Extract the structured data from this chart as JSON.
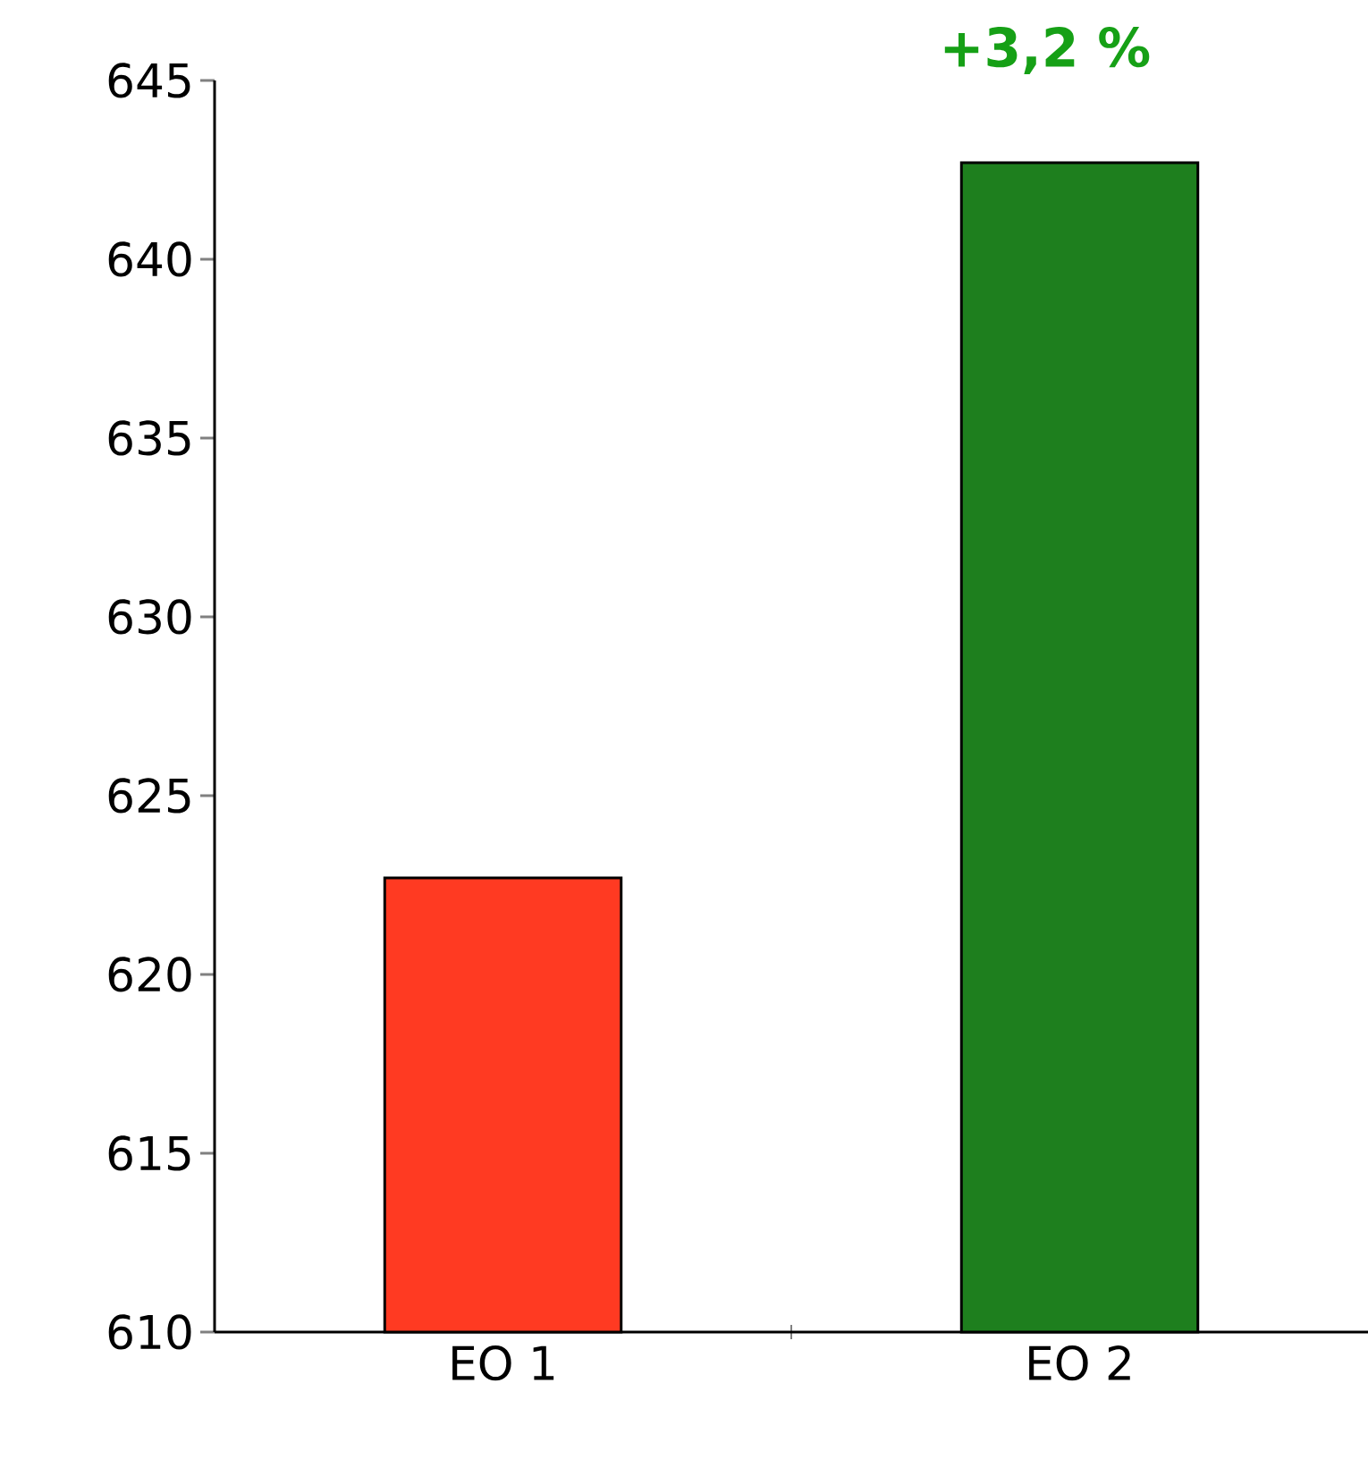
{
  "chart_data": {
    "type": "bar",
    "categories": [
      "EO 1",
      "EO 2"
    ],
    "values": [
      622.7,
      642.7
    ],
    "colors": [
      "#ff3a22",
      "#1e7f1e"
    ],
    "ylim": [
      610,
      645
    ],
    "yticks": [
      610,
      615,
      620,
      625,
      630,
      635,
      640,
      645
    ],
    "annotations": [
      "+3,2 %"
    ],
    "grid": false
  }
}
